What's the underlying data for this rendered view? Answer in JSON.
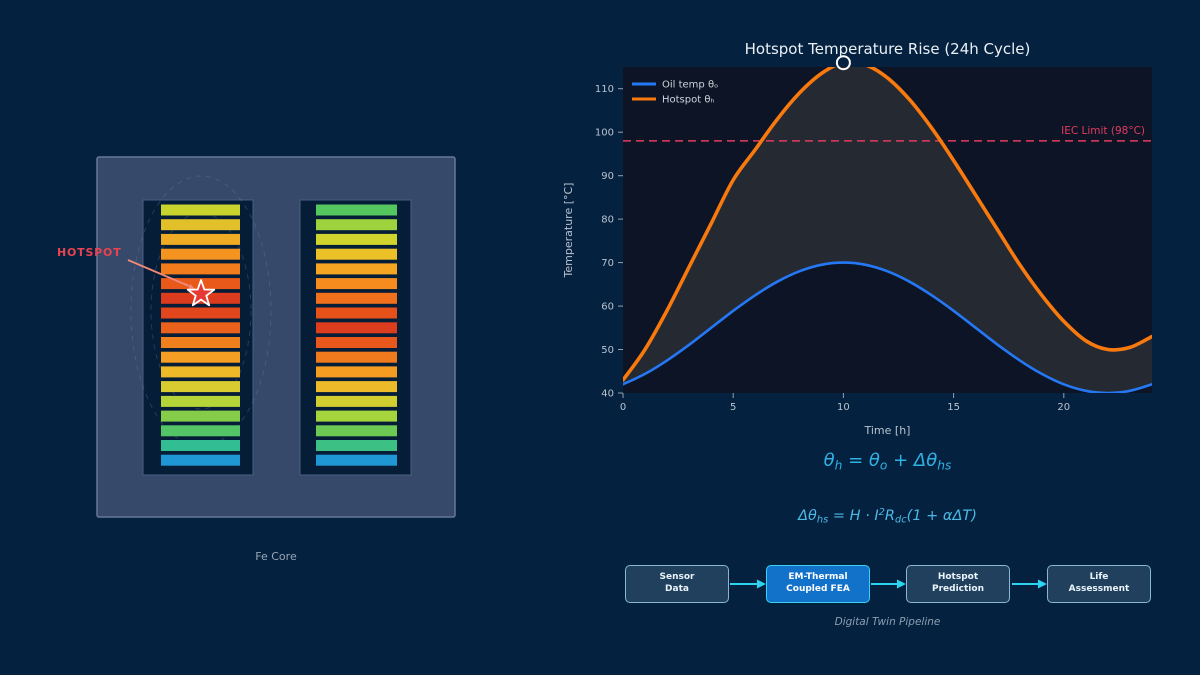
{
  "page": {
    "bg": "#052140"
  },
  "diagram": {
    "caption": "Fe Core",
    "hotspot_label": "HOTSPOT",
    "hotspot_color": "#e8434e",
    "core_fill": "#36496b",
    "core_stroke": "#66789d",
    "window_fill": "#051d36",
    "window_stroke": "#4a5f85",
    "star_fill": "#e53935",
    "star_stroke": "#ffffff",
    "arrow_color": "#ef8a7a",
    "contour_color": "#7289ac",
    "left_winding_colors": [
      "#c9d32e",
      "#e2c02a",
      "#f0ab25",
      "#f59320",
      "#f27b1c",
      "#e95a1a",
      "#dc3b1e",
      "#e1461c",
      "#ea611b",
      "#f0801e",
      "#f49e23",
      "#eeb929",
      "#d8cc30",
      "#b4d438",
      "#85cd49",
      "#54c566",
      "#33bd92",
      "#1f97d4"
    ],
    "right_winding_colors": [
      "#55c75f",
      "#9ed33e",
      "#d0d52e",
      "#ecc128",
      "#f5a522",
      "#f68c1e",
      "#f0701b",
      "#e6511a",
      "#dc3d1e",
      "#e8571c",
      "#ef7a1d",
      "#f49c22",
      "#edbb29",
      "#d2ce30",
      "#a6d43c",
      "#6cc954",
      "#3cc083",
      "#1f97d4"
    ]
  },
  "chart": {
    "title": "Hotspot Temperature Rise (24h Cycle)",
    "plot_bg": "#0d1426",
    "fill_between_color": "#272a31",
    "axis_text_color": "#b9c3cd",
    "tick_color": "#93a1ad",
    "title_color": "#eaf0f4",
    "legend_text_color": "#ccd5dc",
    "legend": [
      {
        "label": "Oil temp θₒ",
        "color": "#2478f4"
      },
      {
        "label": "Hotspot θₕ",
        "color": "#f8790e"
      }
    ],
    "iec": {
      "label": "IEC Limit (98°C)",
      "color": "#e23b5f"
    },
    "peak_marker_color": "#ffffff"
  },
  "chart_data": {
    "type": "line",
    "title": "Hotspot Temperature Rise (24h Cycle)",
    "xlabel": "Time [h]",
    "ylabel": "Temperature [°C]",
    "xlim": [
      0,
      24
    ],
    "ylim": [
      40,
      115
    ],
    "xticks": [
      0,
      5,
      10,
      15,
      20
    ],
    "yticks": [
      40,
      50,
      60,
      70,
      80,
      90,
      100,
      110
    ],
    "grid": false,
    "legend_position": "upper left",
    "x": [
      0,
      1,
      2,
      3,
      4,
      5,
      6,
      7,
      8,
      9,
      10,
      11,
      12,
      13,
      14,
      15,
      16,
      17,
      18,
      19,
      20,
      21,
      22,
      23,
      24
    ],
    "series": [
      {
        "name": "Oil temp θ_o",
        "color": "#2478f4",
        "width": 2.6,
        "values": [
          42,
          44.4,
          47.5,
          51.1,
          55,
          58.9,
          62.5,
          65.6,
          68,
          69.5,
          70,
          69.5,
          68,
          65.6,
          62.5,
          58.9,
          55,
          51.1,
          47.5,
          44.4,
          42,
          40.5,
          40,
          40.5,
          42
        ]
      },
      {
        "name": "Hotspot θ_h",
        "color": "#f8790e",
        "width": 3.6,
        "values": [
          43,
          50,
          59,
          69,
          79,
          89,
          96,
          103,
          109,
          113.5,
          116,
          115.5,
          112.5,
          107.5,
          101,
          93.5,
          85.5,
          77.5,
          69.5,
          62.5,
          56.5,
          52,
          50,
          50.5,
          53
        ]
      }
    ],
    "fill_between": {
      "between": [
        "Hotspot θ_h",
        "Oil temp θ_o"
      ]
    },
    "iec_limit": {
      "value": 98,
      "label": "IEC Limit (98°C)"
    },
    "peak_marker": {
      "x": 10,
      "y": 116
    }
  },
  "formulas": {
    "color1": "#31b0e2",
    "color2": "#4cb9e4",
    "f1": [
      {
        "t": "θ"
      },
      {
        "sub": "h"
      },
      {
        "t": " = θ"
      },
      {
        "sub": "o"
      },
      {
        "t": " + Δθ"
      },
      {
        "sub": "hs"
      }
    ],
    "f2": [
      {
        "t": "Δθ"
      },
      {
        "sub": "hs"
      },
      {
        "t": " = H · I"
      },
      {
        "sup": "2"
      },
      {
        "t": "R"
      },
      {
        "sub": "dc"
      },
      {
        "t": "(1 + αΔT)"
      }
    ]
  },
  "pipeline": {
    "caption": "Digital Twin Pipeline",
    "arrow_color": "#2bd4f0",
    "box_fill": "#20405d",
    "box_border": "#8ab6d8",
    "box_text_color": "#e9f3f9",
    "highlight_fill": "#1271c8",
    "highlight_border": "#3ad2f2",
    "highlight_text_color": "#ffffff",
    "stages": [
      {
        "label": "Sensor\nData",
        "highlight": false
      },
      {
        "label": "EM-Thermal\nCoupled FEA",
        "highlight": true
      },
      {
        "label": "Hotspot\nPrediction",
        "highlight": false
      },
      {
        "label": "Life\nAssessment",
        "highlight": false
      }
    ]
  }
}
